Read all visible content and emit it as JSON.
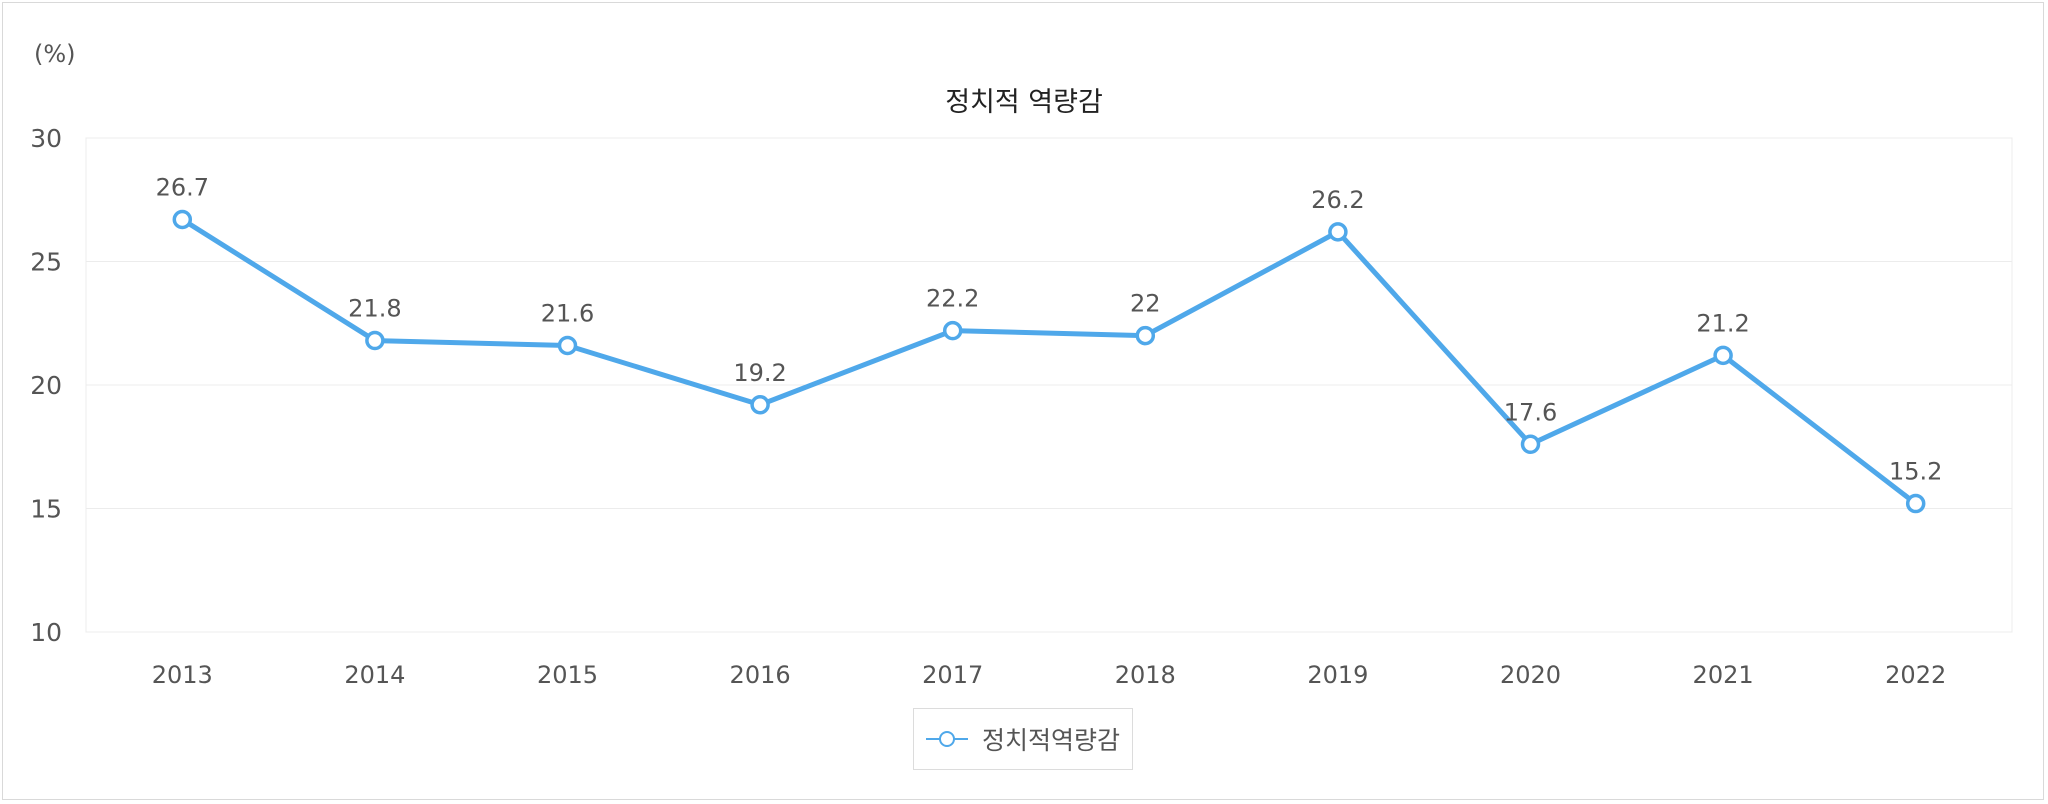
{
  "chart_data": {
    "type": "line",
    "title": "정치적 역량감",
    "unit_label": "(%)",
    "xlabel": "",
    "ylabel": "",
    "categories": [
      "2013",
      "2014",
      "2015",
      "2016",
      "2017",
      "2018",
      "2019",
      "2020",
      "2021",
      "2022"
    ],
    "series": [
      {
        "name": "정치적역량감",
        "values": [
          26.7,
          21.8,
          21.6,
          19.2,
          22.2,
          22,
          26.2,
          17.6,
          21.2,
          15.2
        ],
        "color": "#4fa8ea"
      }
    ],
    "ylim": [
      10,
      30
    ],
    "yticks": [
      10,
      15,
      20,
      25,
      30
    ],
    "grid": true,
    "legend_position": "bottom-center",
    "data_labels": true
  }
}
